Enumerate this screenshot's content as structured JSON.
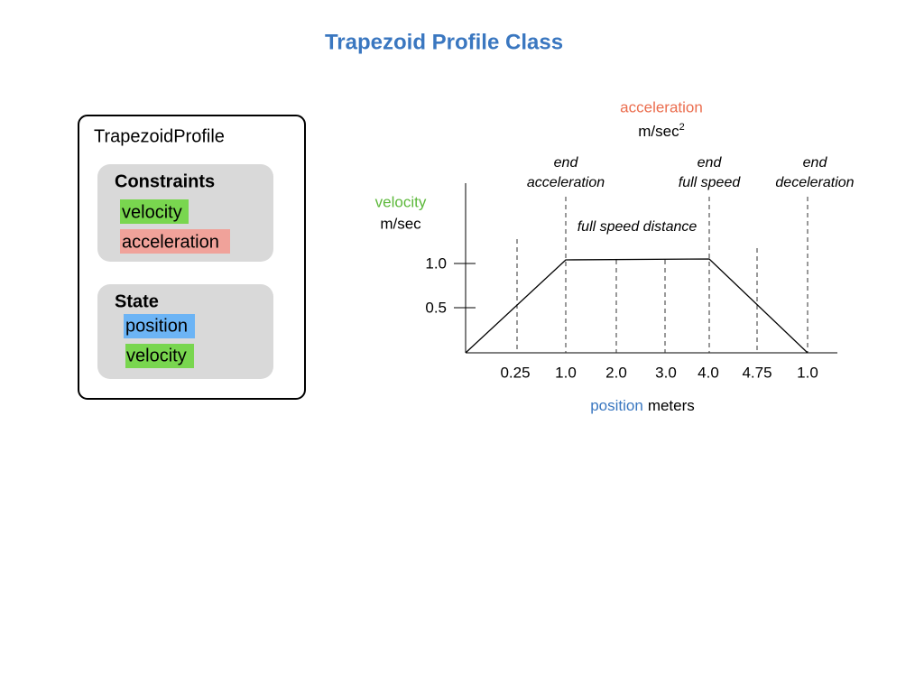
{
  "title": "Trapezoid Profile Class",
  "class_box": {
    "name": "TrapezoidProfile",
    "groups": [
      {
        "label": "Constraints",
        "items": [
          "velocity",
          "acceleration"
        ]
      },
      {
        "label": "State",
        "items": [
          "position",
          "velocity"
        ]
      }
    ]
  },
  "graph": {
    "top_label": "acceleration",
    "top_unit": "m/sec",
    "top_unit_sup": "2",
    "y_label": "velocity",
    "y_unit": "m/sec",
    "yticks": [
      "1.0",
      "0.5"
    ],
    "xticks": [
      "0.25",
      "1.0",
      "2.0",
      "3.0",
      "4.0",
      "4.75",
      "1.0"
    ],
    "x_label_highlight": "position",
    "x_label": "meters",
    "markers": [
      {
        "line1": "end",
        "line2": "acceleration"
      },
      {
        "line1": "end",
        "line2": "full speed"
      },
      {
        "line1": "end",
        "line2": "deceleration"
      }
    ],
    "span_label": "full speed distance"
  }
}
